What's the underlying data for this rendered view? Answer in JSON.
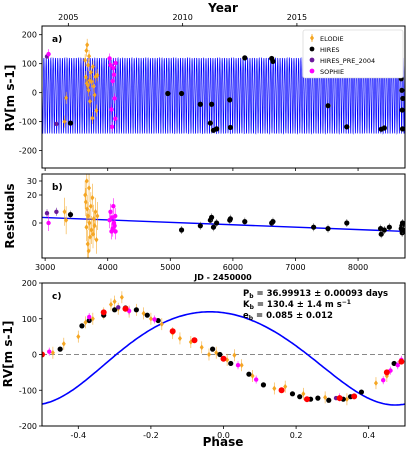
{
  "figure": {
    "top_axis_title": "Year",
    "panel_a_tag": "a)",
    "panel_b_tag": "b)",
    "panel_c_tag": "c)",
    "ylabel_a": "RV[m s-1]",
    "ylabel_b": "Residuals",
    "ylabel_c": "RV[m s-1]",
    "xlabel_b": "JD - 2450000",
    "xlabel_c": "Phase",
    "annotation": {
      "period": "P_b = 36.99913 ± 0.00093 days",
      "amplitude": "K_b = 130.4 ± 1.4 m s^-1",
      "eccentricity": "e_b = 0.085 ± 0.012"
    }
  },
  "colors": {
    "ELODIE": "#f5a623",
    "HIRES": "#000000",
    "HIRES_PRE_2004": "#6a1b9a",
    "SOPHIE": "#ff00ff",
    "model": "#0000ff",
    "binned": "#ff0000",
    "errorbar": "#999999",
    "zero_line": "#888888"
  },
  "chart_data": [
    {
      "type": "scatter",
      "panel": "a",
      "xlabel": "JD - 2450000",
      "ylabel": "RV[m s-1]",
      "xlim": [
        2950,
        8750
      ],
      "ylim": [
        -260,
        230
      ],
      "yticks": [
        -200,
        -100,
        0,
        100,
        200
      ],
      "top_axis": {
        "label": "Year",
        "ticks": [
          "2005",
          "2010",
          "2015"
        ],
        "tick_jd": [
          3371,
          5197,
          7023
        ]
      },
      "model": {
        "period_days": 36.99913,
        "K": 130.4,
        "e": 0.085
      },
      "legend": {
        "placement": "top-right",
        "entries": [
          "ELODIE",
          "HIRES",
          "HIRES_PRE_2004",
          "SOPHIE"
        ]
      },
      "series": [
        {
          "name": "ELODIE",
          "points": [
            [
              3310,
              -100
            ],
            [
              3336,
              -18
            ],
            [
              3640,
              112
            ],
            [
              3650,
              54
            ],
            [
              3660,
              145
            ],
            [
              3665,
              32
            ],
            [
              3672,
              165
            ],
            [
              3680,
              25
            ],
            [
              3688,
              95
            ],
            [
              3695,
              8
            ],
            [
              3702,
              126
            ],
            [
              3710,
              42
            ],
            [
              3718,
              -30
            ],
            [
              3730,
              70
            ],
            [
              3740,
              38
            ],
            [
              3755,
              -88
            ],
            [
              3765,
              90
            ],
            [
              3775,
              22
            ],
            [
              3790,
              -8
            ],
            [
              3805,
              55
            ],
            [
              3820,
              -62
            ],
            [
              3835,
              60
            ]
          ]
        },
        {
          "name": "HIRES",
          "points": [
            [
              3405,
              -105
            ],
            [
              4960,
              -3
            ],
            [
              5180,
              -3
            ],
            [
              5480,
              -40
            ],
            [
              5640,
              -105
            ],
            [
              5660,
              -40
            ],
            [
              5690,
              -130
            ],
            [
              5740,
              -125
            ],
            [
              5950,
              -25
            ],
            [
              5960,
              -120
            ],
            [
              6190,
              120
            ],
            [
              6620,
              118
            ],
            [
              6640,
              108
            ],
            [
              7290,
              126
            ],
            [
              7520,
              -45
            ],
            [
              7820,
              -118
            ],
            [
              8360,
              105
            ],
            [
              8370,
              -126
            ],
            [
              8420,
              -122
            ],
            [
              8500,
              110
            ],
            [
              8690,
              48
            ],
            [
              8700,
              8
            ],
            [
              8705,
              -60
            ],
            [
              8710,
              -125
            ],
            [
              8715,
              -20
            ]
          ]
        },
        {
          "name": "HIRES_PRE_2004",
          "points": [
            [
              3030,
              125
            ],
            [
              3180,
              -108
            ]
          ]
        },
        {
          "name": "SOPHIE",
          "points": [
            [
              3055,
              133
            ],
            [
              4030,
              118
            ],
            [
              4045,
              95
            ],
            [
              4060,
              -58
            ],
            [
              4070,
              -118
            ],
            [
              4080,
              40
            ],
            [
              4090,
              85
            ],
            [
              4100,
              62
            ],
            [
              4110,
              -20
            ],
            [
              4120,
              -90
            ],
            [
              4125,
              102
            ]
          ]
        }
      ]
    },
    {
      "type": "scatter",
      "panel": "b",
      "xlabel": "JD - 2450000",
      "ylabel": "Residuals",
      "xlim": [
        2950,
        8750
      ],
      "ylim": [
        -25,
        35
      ],
      "yticks": [
        0,
        20,
        30
      ],
      "xticks": [
        3000,
        4000,
        5000,
        6000,
        7000,
        8000
      ],
      "trend": {
        "x": [
          2950,
          8750
        ],
        "y": [
          4,
          -6
        ]
      },
      "series": [
        {
          "name": "ELODIE",
          "points": [
            [
              3310,
              8
            ],
            [
              3336,
              2
            ],
            [
              3640,
              20
            ],
            [
              3650,
              15
            ],
            [
              3660,
              -3
            ],
            [
              3665,
              30
            ],
            [
              3672,
              10
            ],
            [
              3680,
              -15
            ],
            [
              3688,
              5
            ],
            [
              3695,
              -20
            ],
            [
              3702,
              25
            ],
            [
              3710,
              0
            ],
            [
              3718,
              -10
            ],
            [
              3730,
              12
            ],
            [
              3740,
              -5
            ],
            [
              3755,
              18
            ],
            [
              3765,
              -8
            ],
            [
              3775,
              3
            ],
            [
              3790,
              -2
            ],
            [
              3805,
              8
            ],
            [
              3820,
              -12
            ],
            [
              3835,
              5
            ]
          ]
        },
        {
          "name": "HIRES",
          "points": [
            [
              3405,
              6
            ],
            [
              5180,
              -5
            ],
            [
              5480,
              -2
            ],
            [
              5640,
              2
            ],
            [
              5660,
              4
            ],
            [
              5690,
              -3
            ],
            [
              5740,
              0
            ],
            [
              5950,
              2
            ],
            [
              5960,
              3
            ],
            [
              6190,
              1
            ],
            [
              6620,
              0
            ],
            [
              6640,
              1
            ],
            [
              7290,
              -3
            ],
            [
              7520,
              -4
            ],
            [
              7820,
              0
            ],
            [
              8360,
              -4
            ],
            [
              8370,
              -8
            ],
            [
              8420,
              -5
            ],
            [
              8500,
              -3
            ],
            [
              8690,
              -4
            ],
            [
              8700,
              -2
            ],
            [
              8705,
              -7
            ],
            [
              8710,
              0
            ],
            [
              8715,
              -5
            ]
          ]
        },
        {
          "name": "HIRES_PRE_2004",
          "points": [
            [
              3030,
              7
            ],
            [
              3180,
              8
            ]
          ]
        },
        {
          "name": "SOPHIE",
          "points": [
            [
              3055,
              0
            ],
            [
              4030,
              2
            ],
            [
              4045,
              8
            ],
            [
              4060,
              -6
            ],
            [
              4070,
              4
            ],
            [
              4080,
              -4
            ],
            [
              4090,
              12
            ],
            [
              4100,
              0
            ],
            [
              4110,
              -2
            ],
            [
              4120,
              5
            ],
            [
              4125,
              -6
            ]
          ]
        }
      ]
    },
    {
      "type": "scatter",
      "panel": "c",
      "xlabel": "Phase",
      "ylabel": "RV[m s-1]",
      "xlim": [
        -0.5,
        0.5
      ],
      "ylim": [
        -200,
        200
      ],
      "xticks": [
        -0.4,
        -0.2,
        0.0,
        0.2,
        0.4
      ],
      "yticks": [
        -200,
        -100,
        0,
        100,
        200
      ],
      "model": {
        "K": 130.4,
        "e": 0.085
      },
      "series": [
        {
          "name": "ELODIE",
          "points": [
            [
              -0.47,
              5
            ],
            [
              -0.44,
              30
            ],
            [
              -0.4,
              50
            ],
            [
              -0.38,
              90
            ],
            [
              -0.36,
              100
            ],
            [
              -0.33,
              115
            ],
            [
              -0.31,
              140
            ],
            [
              -0.3,
              148
            ],
            [
              -0.29,
              128
            ],
            [
              -0.28,
              160
            ],
            [
              -0.26,
              120
            ],
            [
              -0.24,
              125
            ],
            [
              -0.22,
              115
            ],
            [
              -0.2,
              100
            ],
            [
              -0.17,
              85
            ],
            [
              -0.14,
              60
            ],
            [
              -0.12,
              45
            ],
            [
              -0.09,
              35
            ],
            [
              -0.06,
              20
            ],
            [
              -0.04,
              0
            ],
            [
              -0.02,
              5
            ],
            [
              0.01,
              -15
            ],
            [
              0.03,
              -2
            ],
            [
              0.05,
              -30
            ],
            [
              0.08,
              -60
            ],
            [
              0.14,
              -95
            ],
            [
              0.17,
              -90
            ],
            [
              0.22,
              -110
            ],
            [
              0.28,
              -120
            ],
            [
              0.34,
              -125
            ],
            [
              0.42,
              -80
            ],
            [
              0.45,
              -60
            ]
          ]
        },
        {
          "name": "HIRES",
          "points": [
            [
              -0.45,
              15
            ],
            [
              -0.39,
              80
            ],
            [
              -0.37,
              95
            ],
            [
              -0.33,
              110
            ],
            [
              -0.3,
              125
            ],
            [
              -0.27,
              130
            ],
            [
              -0.24,
              125
            ],
            [
              -0.21,
              110
            ],
            [
              -0.18,
              95
            ],
            [
              -0.14,
              65
            ],
            [
              -0.03,
              15
            ],
            [
              -0.01,
              0
            ],
            [
              0.02,
              -25
            ],
            [
              0.07,
              -55
            ],
            [
              0.11,
              -85
            ],
            [
              0.19,
              -110
            ],
            [
              0.21,
              -118
            ],
            [
              0.24,
              -125
            ],
            [
              0.26,
              -122
            ],
            [
              0.29,
              -128
            ],
            [
              0.33,
              -125
            ],
            [
              0.35,
              -118
            ],
            [
              0.38,
              -105
            ],
            [
              0.47,
              -25
            ]
          ]
        },
        {
          "name": "HIRES_PRE_2004",
          "points": [
            [
              -0.29,
              132
            ],
            [
              0.31,
              -122
            ]
          ]
        },
        {
          "name": "SOPHIE",
          "points": [
            [
              -0.37,
              105
            ],
            [
              -0.26,
              122
            ],
            [
              -0.19,
              98
            ],
            [
              0.04,
              -30
            ],
            [
              0.09,
              -70
            ],
            [
              0.32,
              -120
            ],
            [
              0.44,
              -72
            ],
            [
              0.46,
              -45
            ],
            [
              0.48,
              -30
            ],
            [
              0.49,
              -15
            ],
            [
              -0.48,
              8
            ]
          ]
        },
        {
          "name": "binned",
          "points": [
            [
              -0.5,
              0
            ],
            [
              -0.33,
              118
            ],
            [
              -0.27,
              128
            ],
            [
              -0.14,
              65
            ],
            [
              -0.08,
              40
            ],
            [
              0.0,
              -12
            ],
            [
              0.16,
              -100
            ],
            [
              0.23,
              -125
            ],
            [
              0.32,
              -122
            ],
            [
              0.36,
              -117
            ],
            [
              0.45,
              -50
            ],
            [
              0.49,
              -20
            ]
          ]
        }
      ]
    }
  ]
}
